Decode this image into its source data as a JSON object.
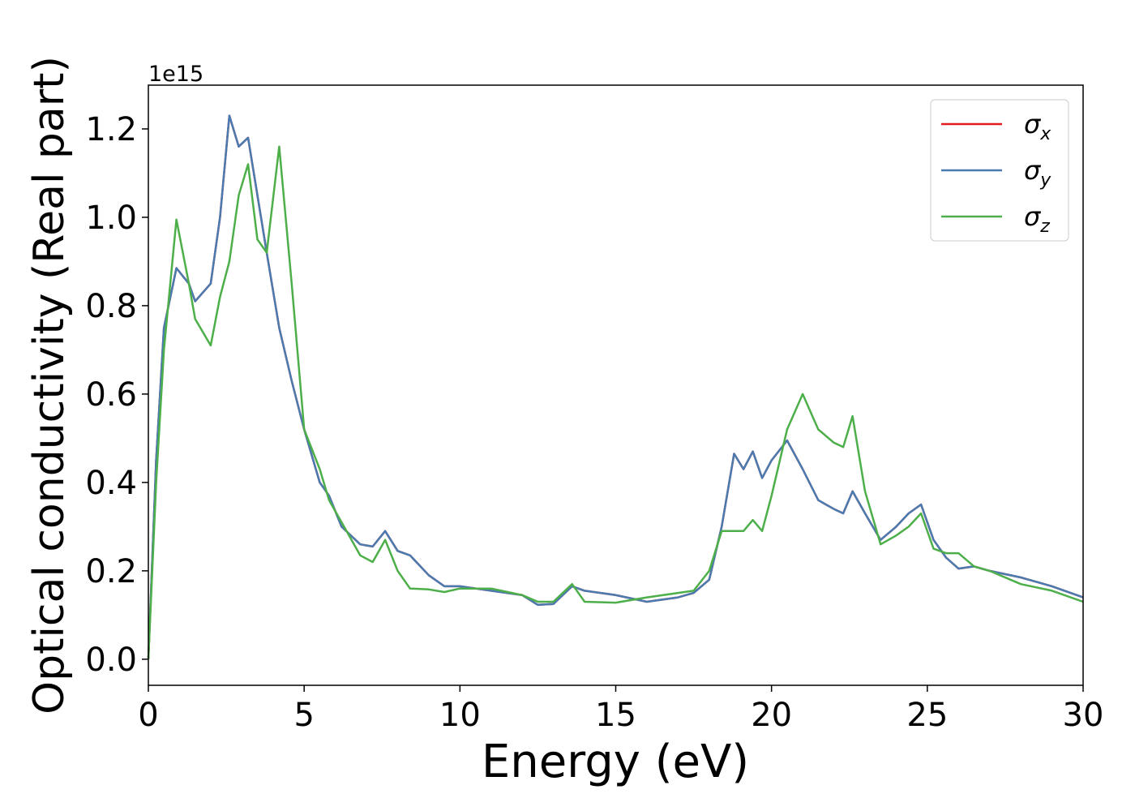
{
  "chart_data": {
    "type": "line",
    "x_label": "Energy (eV)",
    "y_label": "Optical conductivity (Real part)",
    "y_offset_label": "1e15",
    "x": [
      0,
      0.25,
      0.5,
      0.9,
      1.3,
      1.5,
      2.0,
      2.3,
      2.6,
      2.9,
      3.2,
      3.5,
      3.8,
      4.2,
      4.6,
      5.0,
      5.5,
      5.8,
      6.2,
      6.8,
      7.2,
      7.6,
      8.0,
      8.4,
      9.0,
      9.5,
      10,
      11,
      12,
      12.5,
      13,
      13.6,
      14,
      15,
      16,
      17,
      17.5,
      18,
      18.4,
      18.8,
      19.1,
      19.4,
      19.7,
      20,
      20.5,
      21,
      21.5,
      22,
      22.3,
      22.6,
      23,
      23.5,
      24,
      24.4,
      24.8,
      25.2,
      25.6,
      26,
      26.5,
      27,
      28,
      29,
      30
    ],
    "series": [
      {
        "name": "σx",
        "color": "#e41a1c",
        "values": [
          0.0,
          0.45,
          0.75,
          0.885,
          0.85,
          0.81,
          0.85,
          1.0,
          1.23,
          1.16,
          1.18,
          1.05,
          0.92,
          0.75,
          0.63,
          0.52,
          0.4,
          0.37,
          0.3,
          0.26,
          0.255,
          0.29,
          0.245,
          0.235,
          0.19,
          0.165,
          0.165,
          0.155,
          0.145,
          0.123,
          0.125,
          0.165,
          0.155,
          0.145,
          0.13,
          0.14,
          0.15,
          0.18,
          0.3,
          0.465,
          0.43,
          0.47,
          0.41,
          0.45,
          0.495,
          0.43,
          0.36,
          0.34,
          0.33,
          0.38,
          0.33,
          0.27,
          0.3,
          0.33,
          0.35,
          0.27,
          0.23,
          0.205,
          0.21,
          0.2,
          0.185,
          0.165,
          0.14
        ]
      },
      {
        "name": "σy",
        "color": "#4a7bb0",
        "values": [
          0.0,
          0.45,
          0.75,
          0.885,
          0.85,
          0.81,
          0.85,
          1.0,
          1.23,
          1.16,
          1.18,
          1.05,
          0.92,
          0.75,
          0.63,
          0.52,
          0.4,
          0.37,
          0.3,
          0.26,
          0.255,
          0.29,
          0.245,
          0.235,
          0.19,
          0.165,
          0.165,
          0.155,
          0.145,
          0.123,
          0.125,
          0.165,
          0.155,
          0.145,
          0.13,
          0.14,
          0.15,
          0.18,
          0.3,
          0.465,
          0.43,
          0.47,
          0.41,
          0.45,
          0.495,
          0.43,
          0.36,
          0.34,
          0.33,
          0.38,
          0.33,
          0.27,
          0.3,
          0.33,
          0.35,
          0.27,
          0.23,
          0.205,
          0.21,
          0.2,
          0.185,
          0.165,
          0.14
        ]
      },
      {
        "name": "σz",
        "color": "#4daf4a",
        "values": [
          0.0,
          0.4,
          0.7,
          0.995,
          0.85,
          0.77,
          0.71,
          0.82,
          0.9,
          1.05,
          1.12,
          0.95,
          0.92,
          1.16,
          0.85,
          0.52,
          0.43,
          0.36,
          0.31,
          0.235,
          0.22,
          0.27,
          0.2,
          0.16,
          0.158,
          0.152,
          0.16,
          0.16,
          0.145,
          0.13,
          0.13,
          0.17,
          0.13,
          0.128,
          0.14,
          0.15,
          0.155,
          0.2,
          0.29,
          0.29,
          0.29,
          0.315,
          0.29,
          0.37,
          0.52,
          0.6,
          0.52,
          0.49,
          0.48,
          0.55,
          0.38,
          0.26,
          0.28,
          0.3,
          0.33,
          0.25,
          0.24,
          0.24,
          0.21,
          0.2,
          0.17,
          0.155,
          0.13
        ]
      }
    ],
    "xlim": [
      0,
      30
    ],
    "xticks": [
      0,
      5,
      10,
      15,
      20,
      25,
      30
    ],
    "ylim": [
      -0.059,
      1.299
    ],
    "yticks": [
      {
        "value": 0,
        "label": "0.0"
      },
      0.2,
      0.4,
      0.6,
      0.8,
      {
        "value": 1,
        "label": "1.0"
      },
      1.2
    ],
    "grid": false,
    "legend": "upper right"
  }
}
